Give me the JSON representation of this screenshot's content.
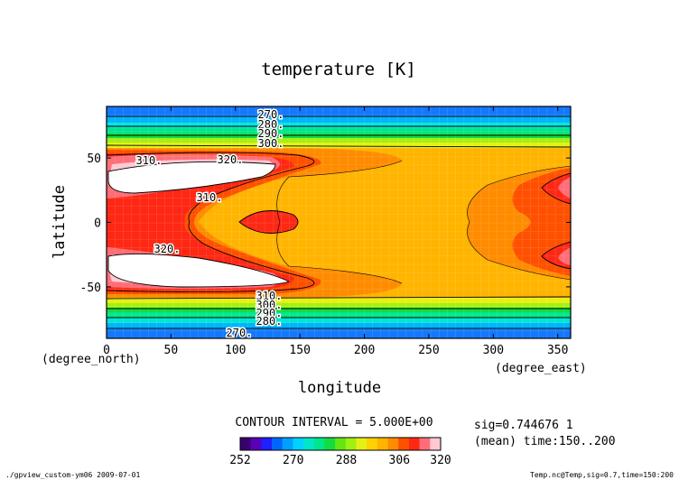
{
  "chart_data": {
    "type": "heatmap",
    "title": "temperature [K]",
    "xlabel": "longitude",
    "ylabel": "latitude",
    "x_unit": "(degree_east)",
    "y_unit": "(degree_north)",
    "xlim": [
      0,
      360
    ],
    "ylim": [
      -90,
      90
    ],
    "x_ticks": [
      0,
      50,
      100,
      150,
      200,
      250,
      300,
      350
    ],
    "y_ticks": [
      50,
      0,
      -50
    ],
    "grid": true,
    "contour_interval_text": "CONTOUR INTERVAL = 5.000E+00",
    "contour_interval": 5.0,
    "contour_labels": [
      "270.",
      "280.",
      "290.",
      "300.",
      "310.",
      "320.",
      "310.",
      "320.",
      "310.",
      "300.",
      "290.",
      "280.",
      "270."
    ],
    "colorbar": {
      "range": [
        252,
        320
      ],
      "tick_labels": [
        "252",
        "270",
        "288",
        "306",
        "320"
      ],
      "colors": [
        "#3a0070",
        "#5a00b8",
        "#1f1fff",
        "#0066ff",
        "#00a0ff",
        "#00d2ff",
        "#00e6c8",
        "#00e68c",
        "#14dc3c",
        "#64e614",
        "#a0f014",
        "#e6f014",
        "#ffd200",
        "#ffb400",
        "#ff8c00",
        "#ff5000",
        "#ff2814",
        "#ff6e78",
        "#ffc8d2"
      ]
    },
    "levels_K": [
      270,
      280,
      290,
      300,
      310,
      320
    ],
    "side_info": [
      "sig=0.744676 1",
      "(mean) time:150..200"
    ]
  },
  "footer": {
    "left": "./gpview_custom-ym06  2009-07-01",
    "right": "Temp.nc@Temp,sig=0.7,time=150:200"
  }
}
